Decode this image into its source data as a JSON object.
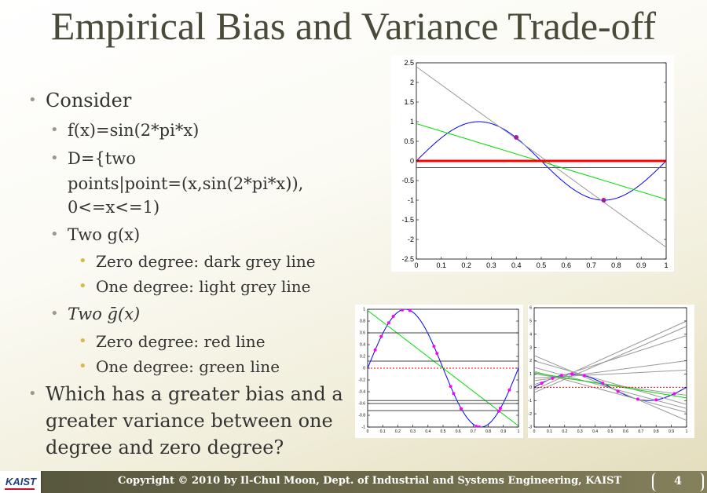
{
  "slide": {
    "title": "Empirical Bias and Variance Trade-off",
    "bullets": [
      {
        "level": 1,
        "text": "Consider"
      },
      {
        "level": 2,
        "text": "f(x)=sin(2*pi*x)"
      },
      {
        "level": 2,
        "text": "D={two"
      },
      {
        "level": 2,
        "text": "points|point=(x,sin(2*pi*x)),"
      },
      {
        "level": 2,
        "text": "0<=x<=1)"
      },
      {
        "level": 2,
        "text": "Two g(x)"
      },
      {
        "level": 3,
        "text": "Zero degree: dark grey line"
      },
      {
        "level": 3,
        "text": "One degree: light grey line"
      },
      {
        "level": 2,
        "text": "Two ḡ(x)"
      },
      {
        "level": 3,
        "text": "Zero degree: red line"
      },
      {
        "level": 3,
        "text": "One degree: green line"
      },
      {
        "level": 1,
        "text": "Which has a greater bias and a"
      },
      {
        "level": 1,
        "text": "greater variance between one"
      },
      {
        "level": 1,
        "text": "degree and zero degree?"
      }
    ],
    "footer": {
      "logo": "KAIST",
      "copyright": "Copyright © 2010 by Il-Chul Moon, Dept. of Industrial and Systems Engineering, KAIST",
      "page_number": "4"
    },
    "colors": {
      "sine": "#0000ff",
      "green": "#00dd00",
      "red": "#ff0000",
      "grey": "#888888",
      "dark_grey": "#444444",
      "point": "#a0209a",
      "magenta": "#ff00ff"
    }
  },
  "chart_data": [
    {
      "type": "line",
      "xlim": [
        0,
        1
      ],
      "ylim": [
        -2.5,
        2.5
      ],
      "xticks": [
        0,
        0.1,
        0.2,
        0.3,
        0.4,
        0.5,
        0.6,
        0.7,
        0.8,
        0.9,
        1
      ],
      "xtick_labels": [
        "0",
        "0.1",
        "0.2",
        "0.3",
        "0.4",
        "0.5",
        "0.6",
        "0.7",
        "0.8",
        "0.9",
        "1"
      ],
      "yticks": [
        -2.5,
        -2,
        -1.5,
        -1,
        -0.5,
        0,
        0.5,
        1,
        1.5,
        2,
        2.5
      ],
      "ytick_labels": [
        "-2.5",
        "-2",
        "-1.5",
        "-1",
        "-0.5",
        "0",
        "0.5",
        "1",
        "1.5",
        "2",
        "2.5"
      ],
      "series": [
        {
          "kind": "sine",
          "color": "#0000ff"
        },
        {
          "kind": "line",
          "points": [
            [
              0,
              2.4
            ],
            [
              1,
              -2.2
            ]
          ],
          "color": "#999999"
        },
        {
          "kind": "line",
          "points": [
            [
              0,
              -0.17
            ],
            [
              1,
              -0.17
            ]
          ],
          "color": "#555555"
        },
        {
          "kind": "line",
          "points": [
            [
              0,
              0.95
            ],
            [
              1,
              -0.98
            ]
          ],
          "color": "#00dd00"
        },
        {
          "kind": "line",
          "points": [
            [
              0,
              0
            ],
            [
              1,
              0
            ]
          ],
          "color": "#ff0000",
          "width": 3
        }
      ],
      "points": [
        [
          0.4,
          0.6
        ],
        [
          0.75,
          -1.0
        ]
      ]
    },
    {
      "type": "line",
      "xlim": [
        0,
        1
      ],
      "ylim": [
        -1,
        1
      ],
      "xticks": [
        0,
        0.1,
        0.2,
        0.3,
        0.4,
        0.5,
        0.6,
        0.7,
        0.8,
        0.9,
        1
      ],
      "xtick_labels": [
        "0",
        "0.1",
        "0.2",
        "0.3",
        "0.4",
        "0.5",
        "0.6",
        "0.7",
        "0.8",
        "0.9",
        "1"
      ],
      "yticks": [
        -1,
        -0.8,
        -0.6,
        -0.4,
        -0.2,
        0,
        0.2,
        0.4,
        0.6,
        0.8,
        1
      ],
      "ytick_labels": [
        "-1",
        "-0.8",
        "-0.6",
        "-0.4",
        "-0.2",
        "0",
        "0.2",
        "0.4",
        "0.6",
        "0.8",
        "1"
      ],
      "series": [
        {
          "kind": "sine",
          "color": "#0000ff"
        },
        {
          "kind": "line",
          "points": [
            [
              0,
              0.98
            ],
            [
              1,
              -0.98
            ]
          ],
          "color": "#00dd00"
        },
        {
          "kind": "line",
          "points": [
            [
              0,
              0.6
            ],
            [
              1,
              0.6
            ]
          ],
          "color": "#444444"
        },
        {
          "kind": "line",
          "points": [
            [
              0,
              0.12
            ],
            [
              1,
              0.12
            ]
          ],
          "color": "#444444"
        },
        {
          "kind": "line",
          "points": [
            [
              0,
              -0.55
            ],
            [
              1,
              -0.55
            ]
          ],
          "color": "#444444"
        },
        {
          "kind": "line",
          "points": [
            [
              0,
              -0.6
            ],
            [
              1,
              -0.6
            ]
          ],
          "color": "#444444"
        },
        {
          "kind": "line",
          "points": [
            [
              0,
              -0.72
            ],
            [
              1,
              -0.72
            ]
          ],
          "color": "#444444"
        },
        {
          "kind": "line",
          "points": [
            [
              0,
              0
            ],
            [
              1,
              0
            ]
          ],
          "color": "#ff0000",
          "dash": "2,2"
        }
      ],
      "points": [
        [
          0.05,
          0.31
        ],
        [
          0.09,
          0.54
        ],
        [
          0.14,
          0.77
        ],
        [
          0.17,
          0.88
        ],
        [
          0.23,
          0.99
        ],
        [
          0.28,
          0.98
        ],
        [
          0.44,
          0.37
        ],
        [
          0.46,
          0.25
        ],
        [
          0.55,
          -0.31
        ],
        [
          0.57,
          -0.43
        ],
        [
          0.62,
          -0.69
        ],
        [
          0.72,
          -0.99
        ],
        [
          0.74,
          -1.0
        ],
        [
          0.87,
          -0.73
        ],
        [
          0.88,
          -0.68
        ],
        [
          0.94,
          -0.37
        ]
      ]
    },
    {
      "type": "line",
      "xlim": [
        0,
        1
      ],
      "ylim": [
        -3,
        6
      ],
      "xticks": [
        0,
        0.1,
        0.2,
        0.3,
        0.4,
        0.5,
        0.6,
        0.7,
        0.8,
        0.9,
        1
      ],
      "xtick_labels": [
        "0",
        "0.1",
        "0.2",
        "0.3",
        "0.4",
        "0.5",
        "0.6",
        "0.7",
        "0.8",
        "0.9",
        "1"
      ],
      "yticks": [
        -3,
        -2,
        -1,
        0,
        1,
        2,
        3,
        4,
        5,
        6
      ],
      "ytick_labels": [
        "-3",
        "-2",
        "-1",
        "0",
        "1",
        "2",
        "3",
        "4",
        "5",
        "6"
      ],
      "series": [
        {
          "kind": "sine",
          "color": "#0000ff"
        },
        {
          "kind": "line",
          "points": [
            [
              0,
              -0.2
            ],
            [
              1,
              5.0
            ]
          ],
          "color": "#999999"
        },
        {
          "kind": "line",
          "points": [
            [
              0,
              -0.4
            ],
            [
              1,
              4.6
            ]
          ],
          "color": "#999999"
        },
        {
          "kind": "line",
          "points": [
            [
              0,
              0.2
            ],
            [
              1,
              3.9
            ]
          ],
          "color": "#999999"
        },
        {
          "kind": "line",
          "points": [
            [
              0,
              0.5
            ],
            [
              1,
              2.0
            ]
          ],
          "color": "#999999"
        },
        {
          "kind": "line",
          "points": [
            [
              0,
              0.7
            ],
            [
              1,
              1.3
            ]
          ],
          "color": "#999999"
        },
        {
          "kind": "line",
          "points": [
            [
              0,
              2.0
            ],
            [
              1,
              -1.3
            ]
          ],
          "color": "#999999"
        },
        {
          "kind": "line",
          "points": [
            [
              0,
              2.4
            ],
            [
              1,
              -2.5
            ]
          ],
          "color": "#999999"
        },
        {
          "kind": "line",
          "points": [
            [
              0,
              1.5
            ],
            [
              1,
              -1.6
            ]
          ],
          "color": "#999999"
        },
        {
          "kind": "line",
          "points": [
            [
              0,
              1.2
            ],
            [
              1,
              -1.9
            ]
          ],
          "color": "#999999"
        },
        {
          "kind": "line",
          "points": [
            [
              0,
              1.0
            ],
            [
              1,
              -0.6
            ]
          ],
          "color": "#999999"
        },
        {
          "kind": "line",
          "points": [
            [
              0,
              1.1
            ],
            [
              1,
              -0.8
            ]
          ],
          "color": "#00dd00"
        },
        {
          "kind": "line",
          "points": [
            [
              0,
              0
            ],
            [
              1,
              0
            ]
          ],
          "color": "#ff0000",
          "dash": "2,2"
        }
      ],
      "points": [
        [
          0.05,
          0.31
        ],
        [
          0.12,
          0.68
        ],
        [
          0.18,
          0.9
        ],
        [
          0.25,
          1.0
        ],
        [
          0.33,
          0.87
        ],
        [
          0.45,
          0.31
        ],
        [
          0.55,
          -0.31
        ],
        [
          0.68,
          -0.9
        ],
        [
          0.8,
          -0.95
        ],
        [
          0.92,
          -0.48
        ]
      ]
    }
  ]
}
